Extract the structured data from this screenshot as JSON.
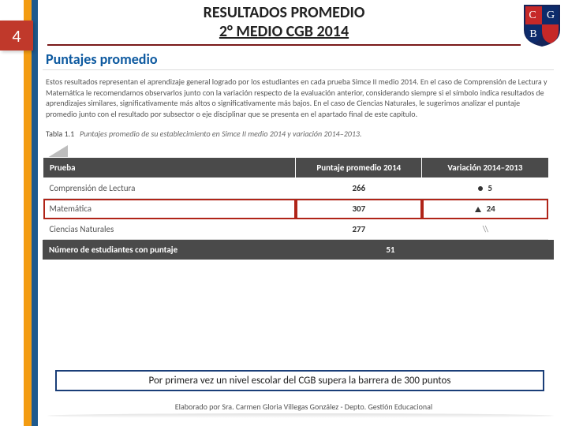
{
  "slide_number": "4",
  "title_line1": "RESULTADOS PROMEDIO",
  "title_line2": "2° MEDIO CGB 2014",
  "shield": {
    "field_colors": [
      "#c62828",
      "#0d2b6b",
      "#0d2b6b",
      "#c62828"
    ],
    "letters": [
      "C",
      "G",
      "B"
    ],
    "letter_color": "#ffffff",
    "border": "#14255a"
  },
  "section_title": "Puntajes promedio",
  "description": "Estos resultados representan el aprendizaje general logrado por los estudiantes en cada prueba Simce II medio 2014. En el caso de Comprensión de Lectura y Matemática le recomendamos observarlos junto con la variación respecto de la evaluación anterior, considerando siempre si el símbolo indica resultados de aprendizajes similares, significativamente más altos o significativamente más bajos. En el caso de Ciencias Naturales, le sugerimos analizar el puntaje promedio junto con el resultado por subsector o eje disciplinar que se presenta en el apartado final de este capítulo.",
  "table_caption_label": "Tabla 1.1",
  "table_caption_text": "Puntajes promedio de su establecimiento en Simce II medio 2014 y variación 2014–2013.",
  "table": {
    "columns": [
      "Prueba",
      "Puntaje promedio 2014",
      "Variación 2014–2013"
    ],
    "col_widths": [
      "50%",
      "25%",
      "25%"
    ],
    "header_bg": "#4a4a4a",
    "header_fg": "#ffffff",
    "highlight_row_index": 1,
    "highlight_border": "#b02418",
    "rows": [
      {
        "prueba": "Comprensión de Lectura",
        "score": "266",
        "var_icon": "dot",
        "var_value": "5"
      },
      {
        "prueba": "Matemática",
        "score": "307",
        "var_icon": "up",
        "var_value": "24"
      },
      {
        "prueba": "Ciencias Naturales",
        "score": "277",
        "var_icon": "none",
        "var_value": "\\\\"
      }
    ]
  },
  "summary": {
    "label": "Número de estudiantes con puntaje",
    "value": "51"
  },
  "callout_text": "Por primera vez un nivel escolar del CGB supera la barrera de 300 puntos",
  "footer_text": "Elaborado por Sra. Carmen Gloria Villegas González - Depto. Gestión Educacional",
  "colors": {
    "orange_stripe": "#f39c12",
    "blue_stripe": "#1e5a8e",
    "slide_number_bg": "#c0392b",
    "title_rule": "#7a1a1a",
    "section_title": "#0e5aa0",
    "callout_border": "#1a3e78"
  }
}
